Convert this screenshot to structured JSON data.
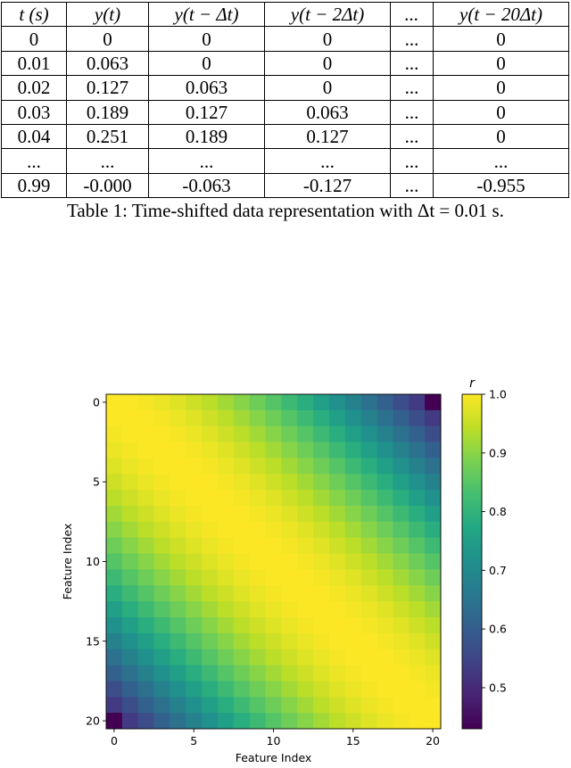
{
  "table": {
    "headers": [
      "t (s)",
      "y(t)",
      "y(t − Δt)",
      "y(t − 2Δt)",
      "...",
      "y(t − 20Δt)"
    ],
    "rows": [
      [
        "0",
        "0",
        "0",
        "0",
        "...",
        "0"
      ],
      [
        "0.01",
        "0.063",
        "0",
        "0",
        "...",
        "0"
      ],
      [
        "0.02",
        "0.127",
        "0.063",
        "0",
        "...",
        "0"
      ],
      [
        "0.03",
        "0.189",
        "0.127",
        "0.063",
        "...",
        "0"
      ],
      [
        "0.04",
        "0.251",
        "0.189",
        "0.127",
        "...",
        "0"
      ],
      [
        "...",
        "...",
        "...",
        "...",
        "...",
        "..."
      ],
      [
        "0.99",
        "-0.000",
        "-0.063",
        "-0.127",
        "...",
        "-0.955"
      ]
    ]
  },
  "caption": "Table 1: Time-shifted data representation with Δt = 0.01 s.",
  "chart_data": {
    "type": "heatmap",
    "n": 21,
    "xlabel": "Feature Index",
    "ylabel": "Feature Index",
    "x_ticks": [
      0,
      5,
      10,
      15,
      20
    ],
    "y_ticks": [
      0,
      5,
      10,
      15,
      20
    ],
    "colorbar_label": "r",
    "colorbar_ticks": [
      "0.5",
      "0.6",
      "0.7",
      "0.8",
      "0.9",
      "1.0"
    ],
    "vmin": 0.43,
    "vmax": 1.0,
    "values_by_lag": [
      1.0,
      0.998,
      0.993,
      0.985,
      0.973,
      0.958,
      0.941,
      0.921,
      0.898,
      0.873,
      0.846,
      0.817,
      0.786,
      0.753,
      0.718,
      0.682,
      0.645,
      0.607,
      0.568,
      0.528,
      0.43
    ],
    "colormap": "viridis"
  }
}
